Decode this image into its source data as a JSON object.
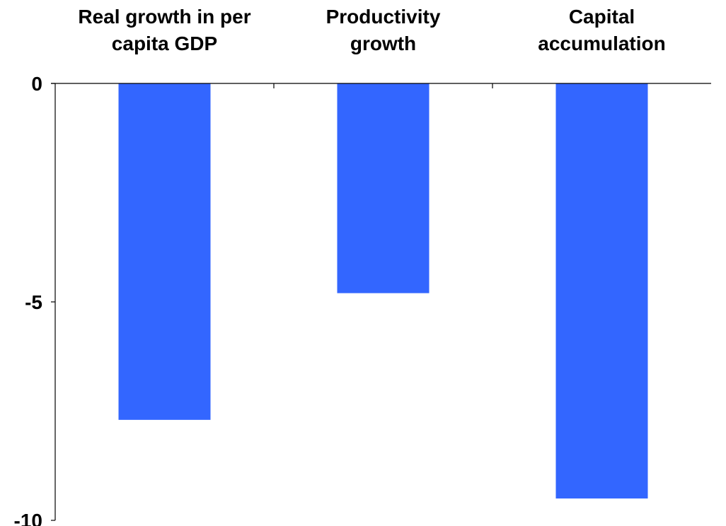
{
  "chart_data": {
    "type": "bar",
    "categories": [
      [
        "Real growth in per",
        "capita GDP"
      ],
      [
        "Productivity",
        "growth"
      ],
      [
        "Capital",
        "accumulation"
      ]
    ],
    "values": [
      -7.7,
      -4.8,
      -9.5
    ],
    "title": "",
    "xlabel": "",
    "ylabel": "",
    "ylim": [
      -10,
      0
    ],
    "yticks": [
      0,
      -5,
      -10
    ],
    "bar_color": "#3366ff",
    "grid": false,
    "legend": "none"
  }
}
